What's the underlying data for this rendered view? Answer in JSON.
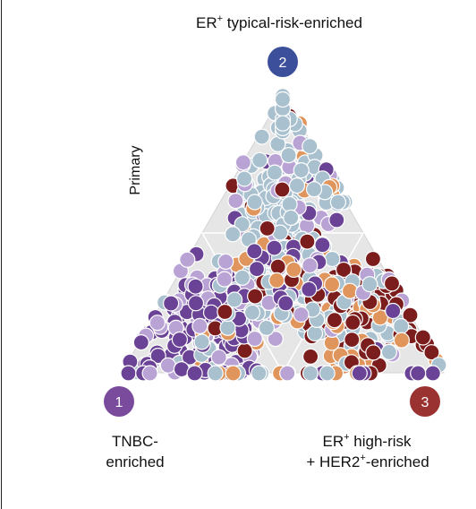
{
  "chart_data": {
    "type": "scatter",
    "layout": "ternary",
    "side_label": "Primary",
    "vertices": [
      {
        "number": "1",
        "label_lines": [
          "TNBC-",
          "enriched"
        ],
        "color": "#7a4a9c"
      },
      {
        "number": "2",
        "label_parts": [
          "ER",
          "+",
          " typical-risk-enriched"
        ],
        "color": "#3c4f9a"
      },
      {
        "number": "3",
        "label_line1_parts": [
          "ER",
          "+",
          " high-risk"
        ],
        "label_line2_parts": [
          "+ HER2",
          "+",
          "-enriched"
        ],
        "color": "#9b3232"
      }
    ],
    "grid": true,
    "marker_colors": [
      "#6b4396",
      "#b9a3d4",
      "#a9c0cf",
      "#e0955c",
      "#7c1d1d"
    ],
    "triangle_fill": "#e6e6e6",
    "grid_color": "#ffffff"
  }
}
